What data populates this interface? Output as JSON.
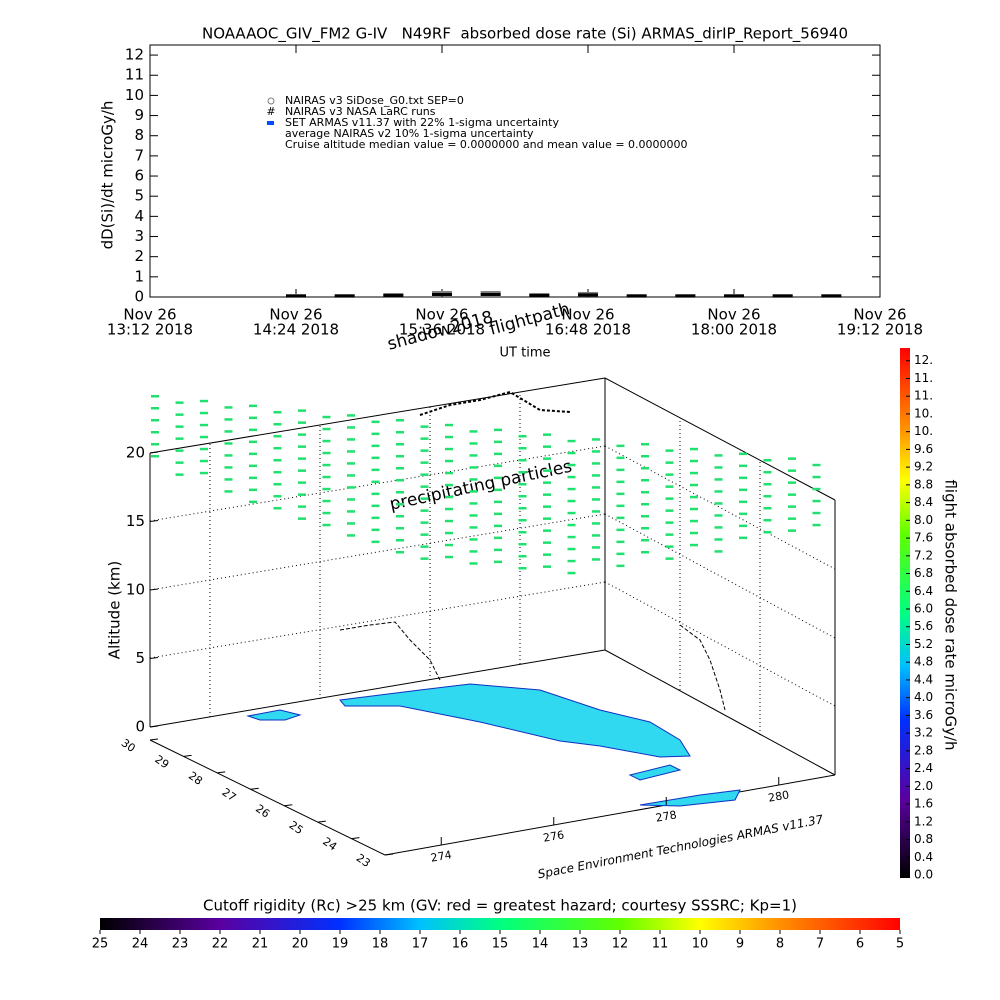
{
  "chart_data": [
    {
      "type": "line",
      "title": "NOAAAOC_GIV_FM2 G-IV   N49RF  absorbed dose rate (Si) ARMAS_dirIP_Report_56940",
      "ylabel": "dD(Si)/dt microGy/h",
      "xlabel": "UT time",
      "xlim": [
        "2018-11-26T13:12",
        "2018-11-26T19:12"
      ],
      "xticks": [
        {
          "value": "2018-11-26T13:12",
          "label": [
            "Nov 26",
            "13:12 2018"
          ]
        },
        {
          "value": "2018-11-26T14:24",
          "label": [
            "Nov 26",
            "14:24 2018"
          ]
        },
        {
          "value": "2018-11-26T15:36",
          "label": [
            "Nov 26",
            "15:36 2018"
          ]
        },
        {
          "value": "2018-11-26T16:48",
          "label": [
            "Nov 26",
            "16:48 2018"
          ]
        },
        {
          "value": "2018-11-26T18:00",
          "label": [
            "Nov 26",
            "18:00 2018"
          ]
        },
        {
          "value": "2018-11-26T19:12",
          "label": [
            "Nov 26",
            "19:12 2018"
          ]
        }
      ],
      "ylim": [
        0,
        12.5
      ],
      "yticks": [
        0,
        1,
        2,
        3,
        4,
        5,
        6,
        7,
        8,
        9,
        10,
        11,
        12
      ],
      "x": [
        "2018-11-26T14:24",
        "2018-11-26T14:48",
        "2018-11-26T15:12",
        "2018-11-26T15:36",
        "2018-11-26T16:00",
        "2018-11-26T16:24",
        "2018-11-26T16:48",
        "2018-11-26T17:12",
        "2018-11-26T17:36",
        "2018-11-26T18:00",
        "2018-11-26T18:24",
        "2018-11-26T18:48"
      ],
      "series": [
        {
          "name": "NAIRAS v3 SiDose_G0.txt SEP=0",
          "color": "#808080",
          "values": [
            0.05,
            0.05,
            0.1,
            0.2,
            0.2,
            0.1,
            0.15,
            0.05,
            0.05,
            0.05,
            0.05,
            0.05
          ]
        },
        {
          "name": "NAIRAS v3 NASA LaRC runs",
          "color": "#000000",
          "values": [
            0.02,
            0.02,
            0.05,
            0.1,
            0.1,
            0.05,
            0.08,
            0.02,
            0.02,
            0.02,
            0.02,
            0.02
          ]
        },
        {
          "name": "SET ARMAS v11.37 with 22% 1-sigma uncertainty",
          "color": "#0050ff",
          "values": [
            null,
            null,
            null,
            null,
            null,
            null,
            null,
            null,
            null,
            null,
            null,
            null
          ]
        },
        {
          "name": "average NAIRAS v2 10% 1-sigma uncertainty",
          "color": "#000000",
          "values": [
            null,
            null,
            null,
            null,
            null,
            null,
            null,
            null,
            null,
            null,
            null,
            null
          ]
        }
      ],
      "annotation": "Cruise altitude median value = 0.0000000 and mean value = 0.0000000"
    },
    {
      "type": "scatter3d",
      "annotations": [
        "flightpath",
        "shadow2018",
        "precipitating particles",
        "Space Environment Technologies ARMAS v11.37"
      ],
      "zlabel": "Altitude (km)",
      "zlim": [
        0,
        20
      ],
      "zticks": [
        0,
        5,
        10,
        15,
        20
      ],
      "ylim": [
        23,
        30
      ],
      "yticks": [
        30,
        29,
        28,
        27,
        26,
        25,
        24,
        23
      ],
      "xlim": [
        273,
        281
      ],
      "xticks": [
        274,
        276,
        278,
        280
      ],
      "colorbars": [
        {
          "label": "flight absorbed dose rate microGy/h",
          "lim": [
            0,
            12
          ],
          "ticks": [
            {
              "value": 0,
              "label": "0.0"
            },
            0.4,
            0.8,
            1.2,
            1.6,
            {
              "value": 2,
              "label": "2.0"
            },
            2.4,
            2.8,
            3.2,
            3.6,
            {
              "value": 4,
              "label": "4.0"
            },
            4.4,
            4.8,
            5.2,
            5.6,
            {
              "value": 6,
              "label": "6.0"
            },
            6.4,
            6.8,
            7.2,
            7.6,
            {
              "value": 8,
              "label": "8.0"
            },
            8.4,
            8.8,
            9.2,
            9.6,
            {
              "value": 10,
              "label": "10."
            },
            {
              "value": 10.4,
              "label": "10."
            },
            {
              "value": 10.8,
              "label": "11."
            },
            {
              "value": 11.2,
              "label": "11."
            },
            {
              "value": 11.6,
              "label": "12."
            }
          ]
        },
        {
          "label": "Cutoff rigidity (Rc) >25 km (GV: red = greatest hazard; courtesy SSSRC; Kp=1)",
          "lim": [
            25,
            5
          ],
          "ticks": [
            25,
            24,
            23,
            22,
            21,
            20,
            19,
            18,
            17,
            16,
            15,
            14,
            13,
            12,
            11,
            10,
            9,
            8,
            7,
            6,
            5
          ]
        }
      ]
    }
  ]
}
